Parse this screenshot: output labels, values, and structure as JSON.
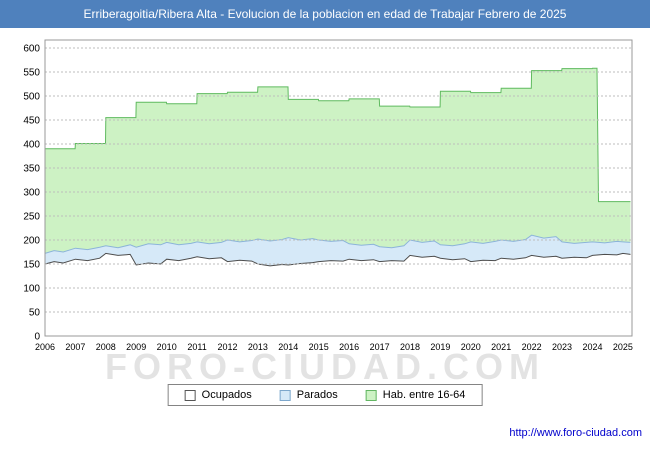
{
  "title": "Erriberagoitia/Ribera Alta - Evolucion de la poblacion en edad de Trabajar Febrero de 2025",
  "watermark": "FORO-CIUDAD.COM",
  "footer": {
    "url": "http://www.foro-ciudad.com"
  },
  "colors": {
    "titlebar_bg": "#4f81bd",
    "grid": "#bdbdbd",
    "plot_border": "#999999",
    "url_text": "#0000cc"
  },
  "legend": {
    "items": [
      {
        "label": "Ocupados",
        "color": "#ffffff",
        "border": "#555555"
      },
      {
        "label": "Parados",
        "color": "#d6e9f8",
        "border": "#7da7cc"
      },
      {
        "label": "Hab. entre 16-64",
        "color": "#cdf2c4",
        "border": "#63b663"
      }
    ]
  },
  "chart_data": {
    "type": "area",
    "title": "Erriberagoitia/Ribera Alta - Evolucion de la poblacion en edad de Trabajar Febrero de 2025",
    "xlabel": "",
    "ylabel": "",
    "x_range": [
      2006,
      2025.3
    ],
    "ylim": [
      0,
      617
    ],
    "y_ticks": [
      0,
      50,
      100,
      150,
      200,
      250,
      300,
      350,
      400,
      450,
      500,
      550,
      600
    ],
    "x_ticks": [
      2006,
      2007,
      2008,
      2009,
      2010,
      2011,
      2012,
      2013,
      2014,
      2015,
      2016,
      2017,
      2018,
      2019,
      2020,
      2021,
      2022,
      2023,
      2024,
      2025
    ],
    "grid": "horizontal-dotted",
    "legend_position": "bottom",
    "series": [
      {
        "name": "Hab. entre 16-64",
        "fill": "#cdf2c4",
        "line": "#5fba5f",
        "points": [
          [
            2006,
            390
          ],
          [
            2006.99,
            390
          ],
          [
            2007,
            401
          ],
          [
            2007.99,
            401
          ],
          [
            2008,
            455
          ],
          [
            2008.99,
            455
          ],
          [
            2009,
            487
          ],
          [
            2009.99,
            487
          ],
          [
            2010,
            484
          ],
          [
            2010.99,
            484
          ],
          [
            2011,
            505
          ],
          [
            2011.99,
            505
          ],
          [
            2012,
            508
          ],
          [
            2012.99,
            508
          ],
          [
            2013,
            519
          ],
          [
            2013.99,
            519
          ],
          [
            2014,
            493
          ],
          [
            2014.99,
            493
          ],
          [
            2015,
            490
          ],
          [
            2015.99,
            490
          ],
          [
            2016,
            494
          ],
          [
            2016.99,
            494
          ],
          [
            2017,
            479
          ],
          [
            2017.99,
            479
          ],
          [
            2018,
            477
          ],
          [
            2018.99,
            477
          ],
          [
            2019,
            510
          ],
          [
            2019.99,
            510
          ],
          [
            2020,
            507
          ],
          [
            2020.99,
            507
          ],
          [
            2021,
            516
          ],
          [
            2021.99,
            516
          ],
          [
            2022,
            553
          ],
          [
            2022.99,
            553
          ],
          [
            2023,
            557
          ],
          [
            2023.99,
            557
          ],
          [
            2024,
            558
          ],
          [
            2024.15,
            558
          ],
          [
            2024.2,
            280
          ],
          [
            2025.25,
            280
          ]
        ]
      },
      {
        "name": "Parados",
        "fill": "#d6e9f8",
        "line": "#8cb4d9",
        "points": [
          [
            2006,
            172
          ],
          [
            2006.3,
            178
          ],
          [
            2006.6,
            175
          ],
          [
            2007,
            183
          ],
          [
            2007.4,
            180
          ],
          [
            2007.8,
            185
          ],
          [
            2008,
            188
          ],
          [
            2008.4,
            184
          ],
          [
            2008.8,
            190
          ],
          [
            2009,
            185
          ],
          [
            2009.4,
            192
          ],
          [
            2009.8,
            190
          ],
          [
            2010,
            195
          ],
          [
            2010.4,
            190
          ],
          [
            2010.8,
            193
          ],
          [
            2011,
            196
          ],
          [
            2011.4,
            192
          ],
          [
            2011.8,
            195
          ],
          [
            2012,
            200
          ],
          [
            2012.4,
            196
          ],
          [
            2012.8,
            199
          ],
          [
            2013,
            202
          ],
          [
            2013.4,
            198
          ],
          [
            2013.8,
            201
          ],
          [
            2014,
            205
          ],
          [
            2014.4,
            200
          ],
          [
            2014.8,
            203
          ],
          [
            2015,
            200
          ],
          [
            2015.4,
            197
          ],
          [
            2015.8,
            199
          ],
          [
            2016,
            192
          ],
          [
            2016.4,
            189
          ],
          [
            2016.8,
            191
          ],
          [
            2017,
            186
          ],
          [
            2017.4,
            184
          ],
          [
            2017.8,
            188
          ],
          [
            2018,
            200
          ],
          [
            2018.4,
            195
          ],
          [
            2018.8,
            198
          ],
          [
            2019,
            190
          ],
          [
            2019.4,
            188
          ],
          [
            2019.8,
            192
          ],
          [
            2020,
            196
          ],
          [
            2020.4,
            193
          ],
          [
            2020.8,
            197
          ],
          [
            2021,
            200
          ],
          [
            2021.4,
            197
          ],
          [
            2021.8,
            201
          ],
          [
            2022,
            210
          ],
          [
            2022.4,
            204
          ],
          [
            2022.8,
            207
          ],
          [
            2023,
            196
          ],
          [
            2023.4,
            193
          ],
          [
            2023.8,
            195
          ],
          [
            2024,
            196
          ],
          [
            2024.4,
            194
          ],
          [
            2024.8,
            197
          ],
          [
            2025,
            196
          ],
          [
            2025.25,
            195
          ]
        ]
      },
      {
        "name": "Ocupados",
        "fill": "#ffffff",
        "line": "#4d4d4d",
        "points": [
          [
            2006,
            150
          ],
          [
            2006.3,
            155
          ],
          [
            2006.6,
            152
          ],
          [
            2007,
            160
          ],
          [
            2007.4,
            157
          ],
          [
            2007.8,
            162
          ],
          [
            2008,
            172
          ],
          [
            2008.4,
            168
          ],
          [
            2008.8,
            170
          ],
          [
            2009,
            148
          ],
          [
            2009.4,
            152
          ],
          [
            2009.8,
            150
          ],
          [
            2010,
            160
          ],
          [
            2010.4,
            157
          ],
          [
            2010.8,
            162
          ],
          [
            2011,
            165
          ],
          [
            2011.4,
            161
          ],
          [
            2011.8,
            163
          ],
          [
            2012,
            155
          ],
          [
            2012.4,
            158
          ],
          [
            2012.8,
            156
          ],
          [
            2013,
            150
          ],
          [
            2013.4,
            146
          ],
          [
            2013.8,
            149
          ],
          [
            2014,
            148
          ],
          [
            2014.4,
            151
          ],
          [
            2014.8,
            153
          ],
          [
            2015,
            155
          ],
          [
            2015.4,
            157
          ],
          [
            2015.8,
            156
          ],
          [
            2016,
            160
          ],
          [
            2016.4,
            157
          ],
          [
            2016.8,
            159
          ],
          [
            2017,
            155
          ],
          [
            2017.4,
            157
          ],
          [
            2017.8,
            156
          ],
          [
            2018,
            168
          ],
          [
            2018.4,
            164
          ],
          [
            2018.8,
            166
          ],
          [
            2019,
            162
          ],
          [
            2019.4,
            159
          ],
          [
            2019.8,
            161
          ],
          [
            2020,
            155
          ],
          [
            2020.4,
            158
          ],
          [
            2020.8,
            157
          ],
          [
            2021,
            162
          ],
          [
            2021.4,
            160
          ],
          [
            2021.8,
            163
          ],
          [
            2022,
            168
          ],
          [
            2022.4,
            164
          ],
          [
            2022.8,
            166
          ],
          [
            2023,
            162
          ],
          [
            2023.4,
            164
          ],
          [
            2023.8,
            163
          ],
          [
            2024,
            168
          ],
          [
            2024.4,
            170
          ],
          [
            2024.8,
            169
          ],
          [
            2025,
            172
          ],
          [
            2025.25,
            170
          ]
        ]
      }
    ]
  }
}
